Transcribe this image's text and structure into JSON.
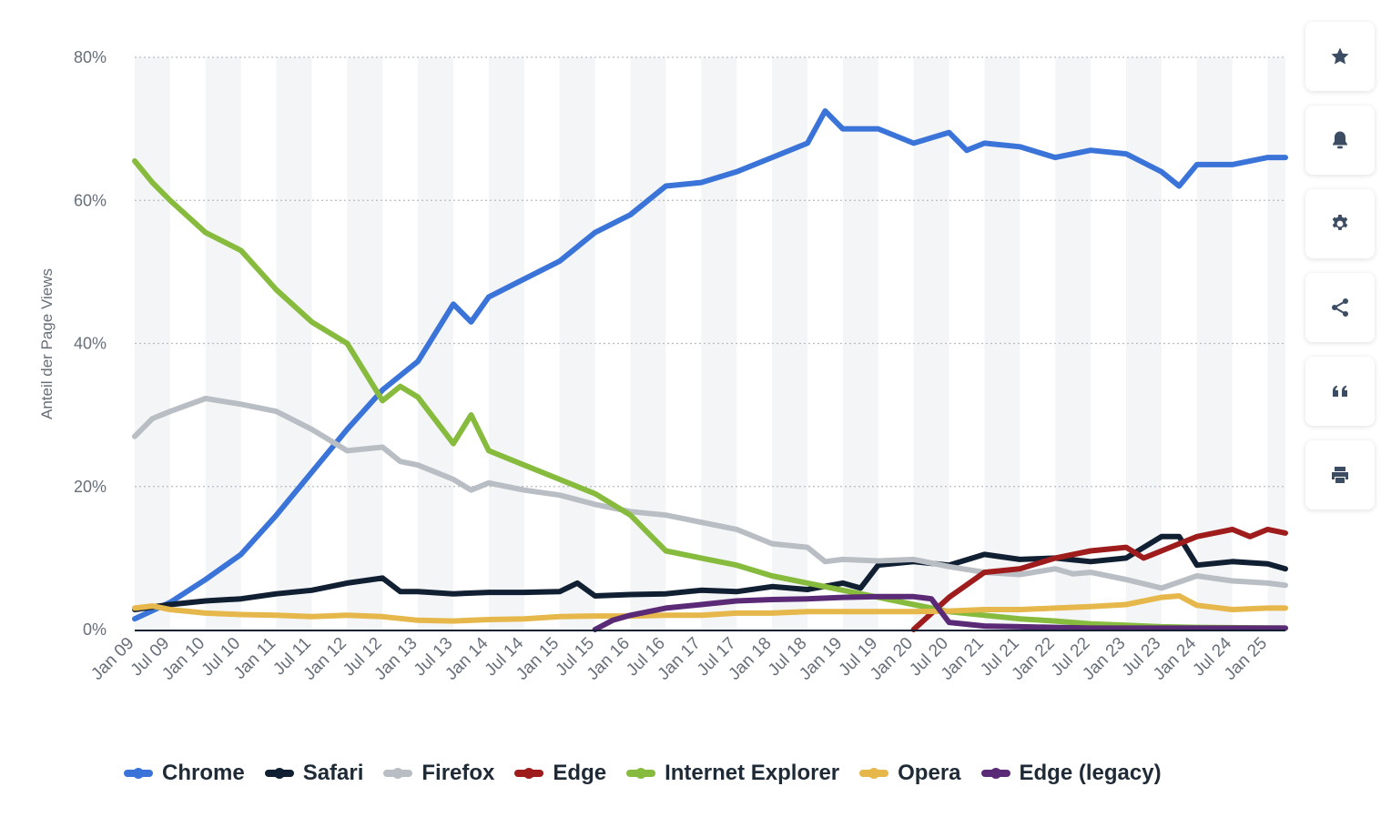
{
  "chart_data": {
    "type": "line",
    "ylabel": "Anteil der Page Views",
    "ylim": [
      0,
      80
    ],
    "y_ticks": [
      "0%",
      "20%",
      "40%",
      "60%",
      "80%"
    ],
    "y_tick_values": [
      0,
      20,
      40,
      60,
      80
    ],
    "x_tick_labels": [
      "Jan 09",
      "Jul 09",
      "Jan 10",
      "Jul 10",
      "Jan 11",
      "Jul 11",
      "Jan 12",
      "Jul 12",
      "Jan 13",
      "Jul 13",
      "Jan 14",
      "Jul 14",
      "Jan 15",
      "Jul 15",
      "Jan 16",
      "Jul 16",
      "Jan 17",
      "Jul 17",
      "Jan 18",
      "Jul 18",
      "Jan 19",
      "Jul 19",
      "Jan 20",
      "Jul 20",
      "Jan 21",
      "Jul 21",
      "Jan 22",
      "Jul 22",
      "Jan 23",
      "Jul 23",
      "Jan 24",
      "Jul 24",
      "Jan 25"
    ],
    "x_range": [
      "Jan 09",
      "Apr 25"
    ],
    "grid": true,
    "legend_position": "bottom",
    "series": [
      {
        "name": "Chrome",
        "color": "#3b74d9",
        "points": [
          [
            "Jan 09",
            1.5
          ],
          [
            "Jul 09",
            3.8
          ],
          [
            "Jan 10",
            7
          ],
          [
            "Jul 10",
            10.5
          ],
          [
            "Jan 11",
            16
          ],
          [
            "Jul 11",
            22
          ],
          [
            "Jan 12",
            28
          ],
          [
            "Jul 12",
            33.5
          ],
          [
            "Jan 13",
            37.5
          ],
          [
            "Jul 13",
            45.5
          ],
          [
            "Oct 13",
            43
          ],
          [
            "Jan 14",
            46.5
          ],
          [
            "Jul 14",
            49
          ],
          [
            "Jan 15",
            51.5
          ],
          [
            "Jul 15",
            55.5
          ],
          [
            "Jan 16",
            58
          ],
          [
            "Jul 16",
            62
          ],
          [
            "Jan 17",
            62.5
          ],
          [
            "Jul 17",
            64
          ],
          [
            "Jan 18",
            66
          ],
          [
            "Jul 18",
            68
          ],
          [
            "Oct 18",
            72.5
          ],
          [
            "Jan 19",
            70
          ],
          [
            "Jul 19",
            70
          ],
          [
            "Jan 20",
            68
          ],
          [
            "Jul 20",
            69.5
          ],
          [
            "Oct 20",
            67
          ],
          [
            "Jan 21",
            68
          ],
          [
            "Jul 21",
            67.5
          ],
          [
            "Jan 22",
            66
          ],
          [
            "Jul 22",
            67
          ],
          [
            "Jan 23",
            66.5
          ],
          [
            "Jul 23",
            64
          ],
          [
            "Oct 23",
            62
          ],
          [
            "Jan 24",
            65
          ],
          [
            "Jul 24",
            65
          ],
          [
            "Jan 25",
            66
          ],
          [
            "Apr 25",
            66
          ]
        ]
      },
      {
        "name": "Safari",
        "color": "#111f33",
        "points": [
          [
            "Jan 09",
            2.8
          ],
          [
            "Jul 09",
            3.5
          ],
          [
            "Jan 10",
            4
          ],
          [
            "Jul 10",
            4.3
          ],
          [
            "Jan 11",
            5
          ],
          [
            "Jul 11",
            5.5
          ],
          [
            "Jan 12",
            6.5
          ],
          [
            "Jul 12",
            7.2
          ],
          [
            "Oct 12",
            5.3
          ],
          [
            "Jan 13",
            5.3
          ],
          [
            "Jul 13",
            5
          ],
          [
            "Jan 14",
            5.2
          ],
          [
            "Jul 14",
            5.2
          ],
          [
            "Jan 15",
            5.3
          ],
          [
            "Apr 15",
            6.5
          ],
          [
            "Jul 15",
            4.7
          ],
          [
            "Jan 16",
            4.9
          ],
          [
            "Jul 16",
            5
          ],
          [
            "Jan 17",
            5.5
          ],
          [
            "Jul 17",
            5.3
          ],
          [
            "Jan 18",
            6
          ],
          [
            "Jul 18",
            5.6
          ],
          [
            "Jan 19",
            6.5
          ],
          [
            "Apr 19",
            5.8
          ],
          [
            "Jul 19",
            9
          ],
          [
            "Jan 20",
            9.5
          ],
          [
            "Jul 20",
            9
          ],
          [
            "Jan 21",
            10.5
          ],
          [
            "Jul 21",
            9.8
          ],
          [
            "Jan 22",
            10
          ],
          [
            "Jul 22",
            9.5
          ],
          [
            "Jan 23",
            10
          ],
          [
            "Jul 23",
            13
          ],
          [
            "Oct 23",
            13
          ],
          [
            "Jan 24",
            9
          ],
          [
            "Jul 24",
            9.5
          ],
          [
            "Jan 25",
            9.2
          ],
          [
            "Apr 25",
            8.5
          ]
        ]
      },
      {
        "name": "Firefox",
        "color": "#b9bec4",
        "points": [
          [
            "Jan 09",
            27
          ],
          [
            "Apr 09",
            29.5
          ],
          [
            "Jul 09",
            30.5
          ],
          [
            "Jan 10",
            32.3
          ],
          [
            "Jul 10",
            31.5
          ],
          [
            "Jan 11",
            30.5
          ],
          [
            "Jul 11",
            28
          ],
          [
            "Jan 12",
            25
          ],
          [
            "Jul 12",
            25.5
          ],
          [
            "Oct 12",
            23.5
          ],
          [
            "Jan 13",
            23
          ],
          [
            "Jul 13",
            21
          ],
          [
            "Oct 13",
            19.5
          ],
          [
            "Jan 14",
            20.5
          ],
          [
            "Jul 14",
            19.5
          ],
          [
            "Jan 15",
            18.8
          ],
          [
            "Jul 15",
            17.5
          ],
          [
            "Jan 16",
            16.5
          ],
          [
            "Jul 16",
            16
          ],
          [
            "Jan 17",
            15
          ],
          [
            "Jul 17",
            14
          ],
          [
            "Jan 18",
            12
          ],
          [
            "Jul 18",
            11.5
          ],
          [
            "Oct 18",
            9.5
          ],
          [
            "Jan 19",
            9.8
          ],
          [
            "Jul 19",
            9.6
          ],
          [
            "Jan 20",
            9.8
          ],
          [
            "Jul 20",
            8.8
          ],
          [
            "Jan 21",
            8
          ],
          [
            "Jul 21",
            7.7
          ],
          [
            "Jan 22",
            8.5
          ],
          [
            "Apr 22",
            7.8
          ],
          [
            "Jul 22",
            8
          ],
          [
            "Jan 23",
            7
          ],
          [
            "Jul 23",
            5.8
          ],
          [
            "Jan 24",
            7.5
          ],
          [
            "Jul 24",
            6.8
          ],
          [
            "Jan 25",
            6.5
          ],
          [
            "Apr 25",
            6.2
          ]
        ]
      },
      {
        "name": "Edge",
        "color": "#9e1c1c",
        "points": [
          [
            "Jan 20",
            0
          ],
          [
            "Jul 20",
            4.5
          ],
          [
            "Jan 21",
            8
          ],
          [
            "Jul 21",
            8.5
          ],
          [
            "Jan 22",
            10
          ],
          [
            "Jul 22",
            11
          ],
          [
            "Jan 23",
            11.5
          ],
          [
            "Apr 23",
            10
          ],
          [
            "Jul 23",
            11
          ],
          [
            "Jan 24",
            13
          ],
          [
            "Jul 24",
            14
          ],
          [
            "Oct 24",
            13
          ],
          [
            "Jan 25",
            14
          ],
          [
            "Apr 25",
            13.5
          ]
        ]
      },
      {
        "name": "Internet Explorer",
        "color": "#86bb3e",
        "points": [
          [
            "Jan 09",
            65.5
          ],
          [
            "Apr 09",
            62.5
          ],
          [
            "Jul 09",
            60
          ],
          [
            "Jan 10",
            55.5
          ],
          [
            "Jul 10",
            53
          ],
          [
            "Jan 11",
            47.5
          ],
          [
            "Jul 11",
            43
          ],
          [
            "Jan 12",
            40
          ],
          [
            "Jul 12",
            32
          ],
          [
            "Oct 12",
            34
          ],
          [
            "Jan 13",
            32.5
          ],
          [
            "Jul 13",
            26
          ],
          [
            "Oct 13",
            30
          ],
          [
            "Jan 14",
            25
          ],
          [
            "Jul 14",
            23
          ],
          [
            "Jan 15",
            21
          ],
          [
            "Jul 15",
            19
          ],
          [
            "Jan 16",
            16
          ],
          [
            "Jul 16",
            11
          ],
          [
            "Jan 17",
            10
          ],
          [
            "Jul 17",
            9
          ],
          [
            "Jan 18",
            7.5
          ],
          [
            "Jul 18",
            6.5
          ],
          [
            "Jan 19",
            5.5
          ],
          [
            "Jul 19",
            4.5
          ],
          [
            "Jan 20",
            3.5
          ],
          [
            "Jul 20",
            2.5
          ],
          [
            "Jan 21",
            2
          ],
          [
            "Jul 21",
            1.5
          ],
          [
            "Jan 22",
            1.2
          ],
          [
            "Jul 22",
            0.8
          ],
          [
            "Jan 23",
            0.6
          ],
          [
            "Jul 23",
            0.4
          ],
          [
            "Jan 24",
            0.3
          ],
          [
            "Apr 25",
            0.2
          ]
        ]
      },
      {
        "name": "Opera",
        "color": "#e6b74a",
        "points": [
          [
            "Jan 09",
            3
          ],
          [
            "Apr 09",
            3.3
          ],
          [
            "Jul 09",
            2.8
          ],
          [
            "Jan 10",
            2.3
          ],
          [
            "Jul 10",
            2.1
          ],
          [
            "Jan 11",
            2
          ],
          [
            "Jul 11",
            1.8
          ],
          [
            "Jan 12",
            2
          ],
          [
            "Jul 12",
            1.8
          ],
          [
            "Jan 13",
            1.3
          ],
          [
            "Jul 13",
            1.2
          ],
          [
            "Jan 14",
            1.4
          ],
          [
            "Jul 14",
            1.5
          ],
          [
            "Jan 15",
            1.8
          ],
          [
            "Jul 15",
            1.9
          ],
          [
            "Jan 16",
            1.9
          ],
          [
            "Jul 16",
            2
          ],
          [
            "Jan 17",
            2
          ],
          [
            "Jul 17",
            2.3
          ],
          [
            "Jan 18",
            2.3
          ],
          [
            "Jul 18",
            2.5
          ],
          [
            "Jan 19",
            2.5
          ],
          [
            "Jul 19",
            2.5
          ],
          [
            "Jan 20",
            2.5
          ],
          [
            "Jul 20",
            2.6
          ],
          [
            "Jan 21",
            2.8
          ],
          [
            "Jul 21",
            2.8
          ],
          [
            "Jan 22",
            3
          ],
          [
            "Jul 22",
            3.2
          ],
          [
            "Jan 23",
            3.5
          ],
          [
            "Jul 23",
            4.5
          ],
          [
            "Oct 23",
            4.7
          ],
          [
            "Jan 24",
            3.4
          ],
          [
            "Jul 24",
            2.8
          ],
          [
            "Jan 25",
            3
          ],
          [
            "Apr 25",
            3
          ]
        ]
      },
      {
        "name": "Edge (legacy)",
        "color": "#5a2a76",
        "points": [
          [
            "Jul 15",
            0
          ],
          [
            "Oct 15",
            1.3
          ],
          [
            "Jan 16",
            2
          ],
          [
            "Jul 16",
            3
          ],
          [
            "Jan 17",
            3.5
          ],
          [
            "Jul 17",
            4
          ],
          [
            "Jan 18",
            4.2
          ],
          [
            "Jul 18",
            4.3
          ],
          [
            "Jan 19",
            4.5
          ],
          [
            "Jul 19",
            4.6
          ],
          [
            "Jan 20",
            4.6
          ],
          [
            "Apr 20",
            4.3
          ],
          [
            "Jul 20",
            1
          ],
          [
            "Jan 21",
            0.5
          ],
          [
            "Jul 21",
            0.4
          ],
          [
            "Jan 22",
            0.3
          ],
          [
            "Jul 22",
            0.2
          ],
          [
            "Jan 23",
            0.2
          ],
          [
            "Apr 25",
            0.2
          ]
        ]
      }
    ]
  },
  "tools": [
    {
      "name": "favorite-button",
      "icon": "star-icon"
    },
    {
      "name": "notification-button",
      "icon": "bell-icon"
    },
    {
      "name": "settings-button",
      "icon": "gear-icon"
    },
    {
      "name": "share-button",
      "icon": "share-icon"
    },
    {
      "name": "cite-button",
      "icon": "quote-icon"
    },
    {
      "name": "print-button",
      "icon": "printer-icon"
    }
  ],
  "colors": {
    "icon": "#3c4d63",
    "grid": "#b7bcc2",
    "band": "#f4f5f6",
    "axis": "#111f33",
    "tick_text": "#676f7a"
  }
}
